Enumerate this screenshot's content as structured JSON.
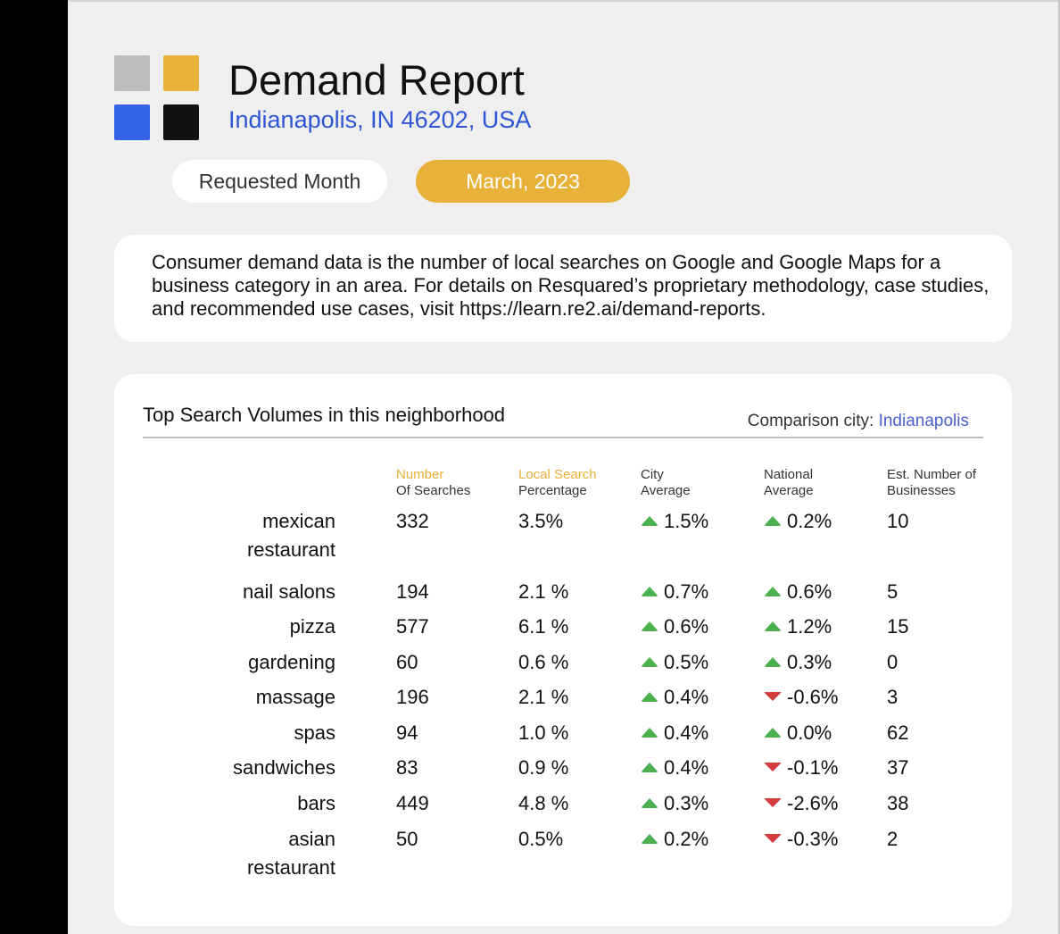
{
  "report": {
    "title": "Demand Report",
    "location": "Indianapolis, IN 46202, USA",
    "requested_month_label": "Requested Month",
    "month": "March, 2023"
  },
  "description": "Consumer demand data is the number of local searches on Google and Google Maps for a business category in an area. For details on Resquared’s proprietary methodology, case studies, and recommended use cases, visit https://learn.re2.ai/demand-reports.",
  "table": {
    "title": "Top Search Volumes in this neighborhood",
    "comparison_label": "Comparison city: ",
    "comparison_city": "Indianapolis",
    "headers": [
      {
        "line1": "Number",
        "line2": "Of Searches"
      },
      {
        "line1": "Local Search",
        "line2": "Percentage"
      },
      {
        "line1": "City",
        "line2": "Average"
      },
      {
        "line1": "National",
        "line2": "Average"
      },
      {
        "line1": "Est. Number of",
        "line2": "Businesses"
      }
    ],
    "rows": [
      {
        "category": "mexican\nrestaurant",
        "searches": "332",
        "local_pct": "3.5%",
        "city_avg": "1.5%",
        "city_trend": "up",
        "national_avg": "0.2%",
        "national_trend": "up",
        "businesses": "10"
      },
      {
        "category": "nail salons",
        "searches": "194",
        "local_pct": "2.1 %",
        "city_avg": "0.7%",
        "city_trend": "up",
        "national_avg": "0.6%",
        "national_trend": "up",
        "businesses": "5"
      },
      {
        "category": "pizza",
        "searches": "577",
        "local_pct": "6.1 %",
        "city_avg": "0.6%",
        "city_trend": "up",
        "national_avg": "1.2%",
        "national_trend": "up",
        "businesses": "15"
      },
      {
        "category": "gardening",
        "searches": "60",
        "local_pct": "0.6 %",
        "city_avg": "0.5%",
        "city_trend": "up",
        "national_avg": "0.3%",
        "national_trend": "up",
        "businesses": "0"
      },
      {
        "category": "massage",
        "searches": "196",
        "local_pct": "2.1 %",
        "city_avg": "0.4%",
        "city_trend": "up",
        "national_avg": "-0.6%",
        "national_trend": "down",
        "businesses": "3"
      },
      {
        "category": "spas",
        "searches": "94",
        "local_pct": "1.0 %",
        "city_avg": "0.4%",
        "city_trend": "up",
        "national_avg": "0.0%",
        "national_trend": "up",
        "businesses": "62"
      },
      {
        "category": "sandwiches",
        "searches": "83",
        "local_pct": "0.9 %",
        "city_avg": "0.4%",
        "city_trend": "up",
        "national_avg": "-0.1%",
        "national_trend": "down",
        "businesses": "37"
      },
      {
        "category": "bars",
        "searches": "449",
        "local_pct": "4.8 %",
        "city_avg": "0.3%",
        "city_trend": "up",
        "national_avg": "-2.6%",
        "national_trend": "down",
        "businesses": "38"
      },
      {
        "category": "asian\nrestaurant",
        "searches": "50",
        "local_pct": "0.5%",
        "city_avg": "0.2%",
        "city_trend": "up",
        "national_avg": "-0.3%",
        "national_trend": "down",
        "businesses": "2"
      }
    ]
  },
  "icons": {
    "logo_squares": [
      "#bdbdbd",
      "#e8b13a",
      "#3563e6",
      "#111111"
    ],
    "trend_up": "triangle-up-icon",
    "trend_down": "triangle-down-icon"
  },
  "colors": {
    "accent_gold": "#e8b13a",
    "link_blue": "#2f56d6",
    "compare_blue": "#4a5fc9",
    "trend_up": "#4caf50",
    "trend_down": "#d23c3c"
  }
}
